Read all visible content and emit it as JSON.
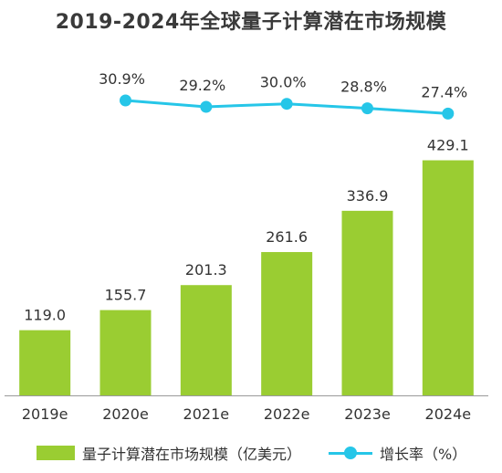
{
  "title": "2019-2024年全球量子计算潜在市场规模",
  "colors": {
    "bar": "#9ACD32",
    "line": "#26C6E8",
    "text": "#333333",
    "axis": "#9a9a9a"
  },
  "legend": {
    "bar_label": "量子计算潜在市场规模（亿美元）",
    "line_label": "增长率（%）"
  },
  "chart_data": {
    "type": "bar",
    "title": "2019-2024年全球量子计算潜在市场规模",
    "categories": [
      "2019e",
      "2020e",
      "2021e",
      "2022e",
      "2023e",
      "2024e"
    ],
    "series": [
      {
        "name": "量子计算潜在市场规模（亿美元）",
        "type": "bar",
        "values": [
          119.0,
          155.7,
          201.3,
          261.6,
          336.9,
          429.1
        ],
        "labels": [
          "119.0",
          "155.7",
          "201.3",
          "261.6",
          "336.9",
          "429.1"
        ]
      },
      {
        "name": "增长率（%）",
        "type": "line",
        "x": [
          "2020e",
          "2021e",
          "2022e",
          "2023e",
          "2024e"
        ],
        "values": [
          30.9,
          29.2,
          30.0,
          28.8,
          27.4
        ],
        "labels": [
          "30.9%",
          "29.2%",
          "30.0%",
          "28.8%",
          "27.4%"
        ]
      }
    ],
    "xlabel": "",
    "ylabel": "",
    "ylim": [
      0,
      430
    ],
    "grid": false,
    "legend_position": "bottom"
  }
}
